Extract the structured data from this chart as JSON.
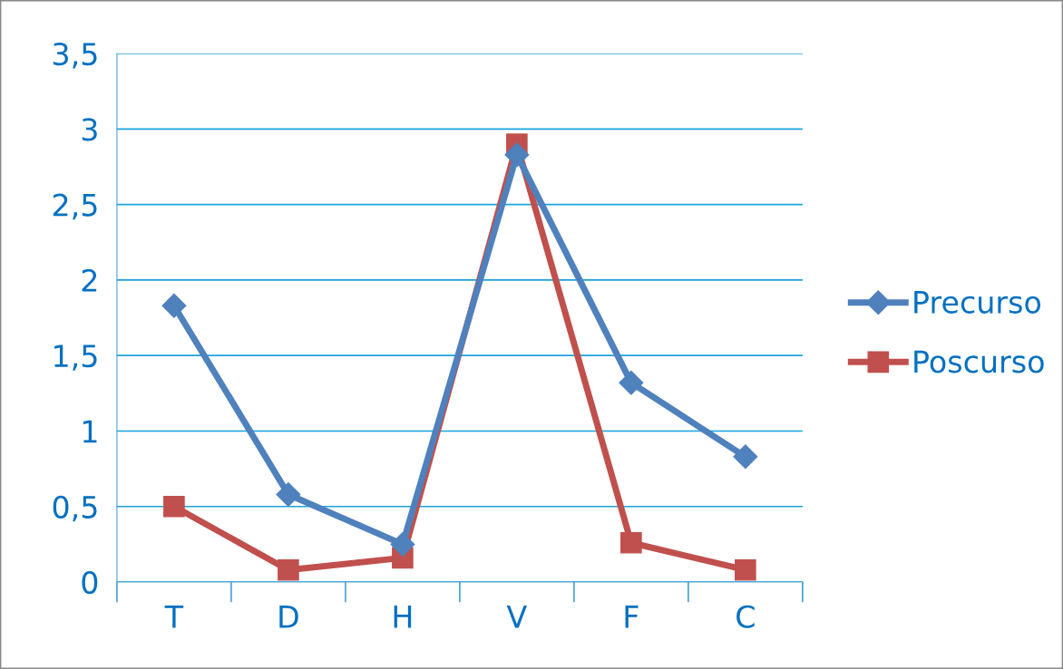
{
  "chart_data": {
    "type": "line",
    "categories": [
      "T",
      "D",
      "H",
      "V",
      "F",
      "C"
    ],
    "series": [
      {
        "name": "Precurso",
        "color": "#4f81bd",
        "marker": "diamond",
        "values": [
          1.83,
          0.58,
          0.25,
          2.83,
          1.32,
          0.83
        ]
      },
      {
        "name": "Poscurso",
        "color": "#c0504d",
        "marker": "square",
        "values": [
          0.5,
          0.08,
          0.16,
          2.9,
          0.26,
          0.08
        ]
      }
    ],
    "ylim": [
      0,
      3.5
    ],
    "yticks": [
      0,
      {
        "value": 0.5,
        "label": "0,5"
      },
      1,
      {
        "value": 1.5,
        "label": "1,5"
      },
      2,
      {
        "value": 2.5,
        "label": "2,5"
      },
      3,
      {
        "value": 3.5,
        "label": "3,5"
      }
    ],
    "grid": "y",
    "legend": "right",
    "line_style": "solid"
  }
}
